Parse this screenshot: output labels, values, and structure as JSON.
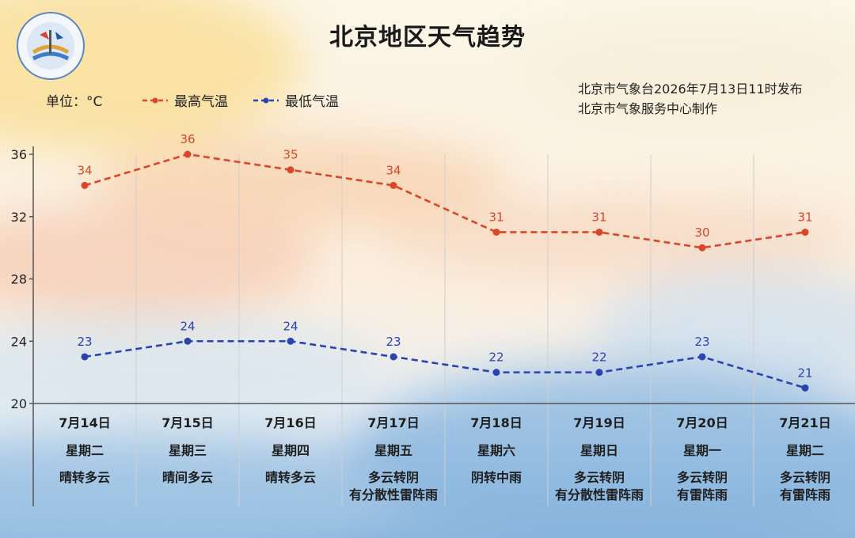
{
  "title": "北京地区天气趋势",
  "unit_label": "单位：°C",
  "issuer": {
    "line1": "北京市气象台2026年7月13日11时发布",
    "line2": "北京市气象服务中心制作"
  },
  "logo": {
    "icon": "meteorological-service-logo",
    "text": "METEOROLOGICAL SERVICE · BEIJING · 气象北京"
  },
  "colors": {
    "high": "#d9462b",
    "low": "#2a44b0",
    "axis": "#555555",
    "grid": "#cfcfcf"
  },
  "chart_data": {
    "type": "line",
    "ylim": [
      20,
      36
    ],
    "yticks": [
      20,
      24,
      28,
      32,
      36
    ],
    "categories": [
      "7月14日",
      "7月15日",
      "7月16日",
      "7月17日",
      "7月18日",
      "7月19日",
      "7月20日",
      "7月21日"
    ],
    "series": [
      {
        "name": "最高气温",
        "color": "#d9462b",
        "style": "dashed",
        "values": [
          34,
          36,
          35,
          34,
          31,
          31,
          30,
          31
        ]
      },
      {
        "name": "最低气温",
        "color": "#2a44b0",
        "style": "dashed",
        "values": [
          23,
          24,
          24,
          23,
          22,
          22,
          23,
          21
        ]
      }
    ],
    "legend_position": "top-left",
    "grid": "vertical separators"
  },
  "days": [
    {
      "date": "7月14日",
      "weekday": "星期二",
      "weather": [
        "晴转多云"
      ]
    },
    {
      "date": "7月15日",
      "weekday": "星期三",
      "weather": [
        "晴间多云"
      ]
    },
    {
      "date": "7月16日",
      "weekday": "星期四",
      "weather": [
        "晴转多云"
      ]
    },
    {
      "date": "7月17日",
      "weekday": "星期五",
      "weather": [
        "多云转阴",
        "有分散性雷阵雨"
      ]
    },
    {
      "date": "7月18日",
      "weekday": "星期六",
      "weather": [
        "阴转中雨"
      ]
    },
    {
      "date": "7月19日",
      "weekday": "星期日",
      "weather": [
        "多云转阴",
        "有分散性雷阵雨"
      ]
    },
    {
      "date": "7月20日",
      "weekday": "星期一",
      "weather": [
        "多云转阴",
        "有雷阵雨"
      ]
    },
    {
      "date": "7月21日",
      "weekday": "星期二",
      "weather": [
        "多云转阴",
        "有雷阵雨"
      ]
    }
  ]
}
